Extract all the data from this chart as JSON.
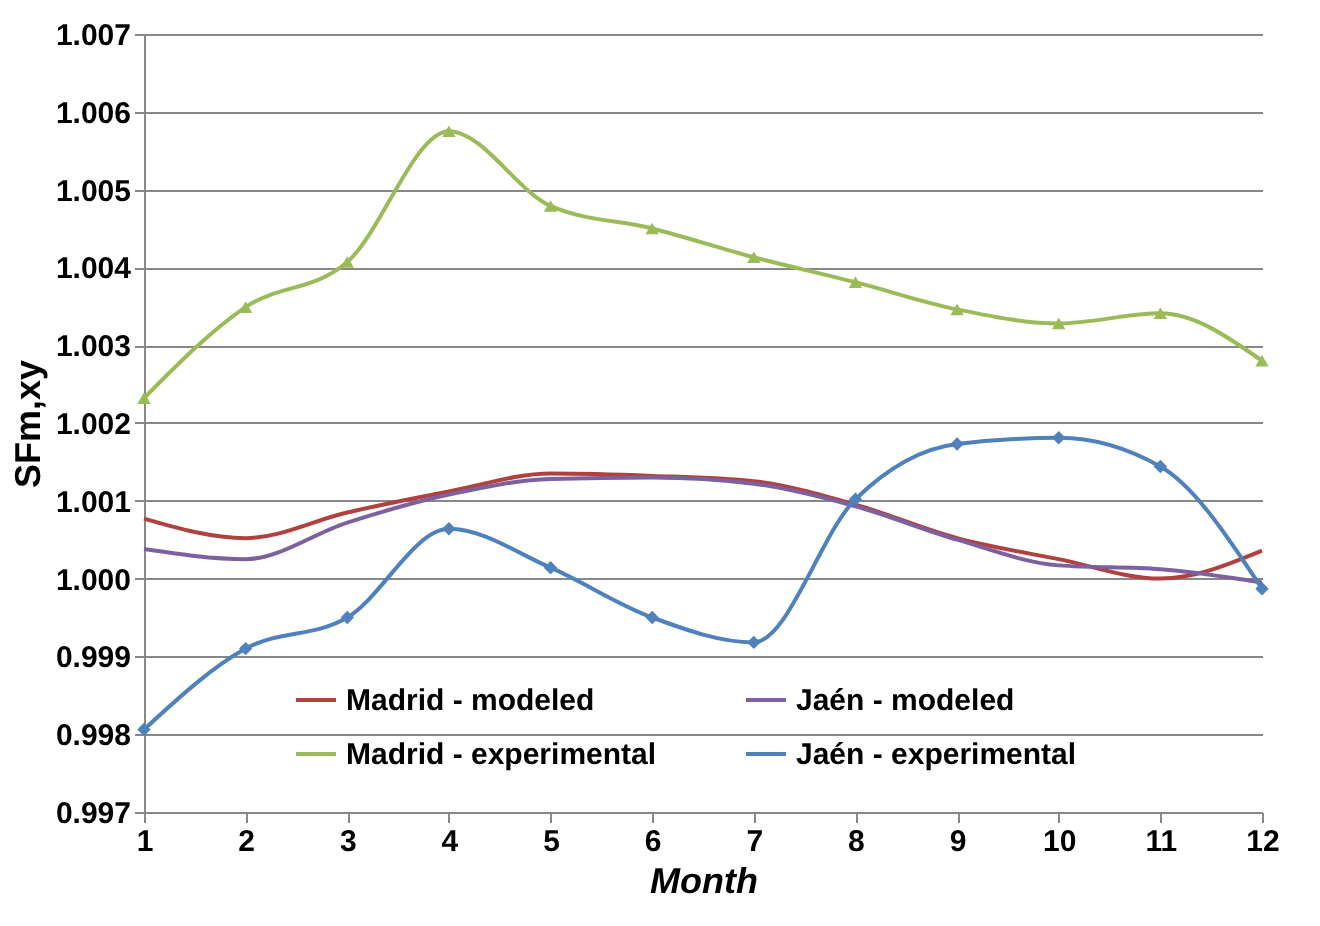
{
  "chart_data": {
    "type": "line",
    "xlabel": "Month",
    "ylabel": "SFm,xy",
    "x": [
      1,
      2,
      3,
      4,
      5,
      6,
      7,
      8,
      9,
      10,
      11,
      12
    ],
    "xlim": [
      1,
      12
    ],
    "xticks": [
      1,
      2,
      3,
      4,
      5,
      6,
      7,
      8,
      9,
      10,
      11,
      12
    ],
    "ylim": [
      0.997,
      1.007
    ],
    "yticks": [
      {
        "value": 0.997,
        "label": "0.997"
      },
      {
        "value": 0.998,
        "label": "0.998"
      },
      {
        "value": 0.999,
        "label": "0.999"
      },
      {
        "value": 1.0,
        "label": "1.000"
      },
      {
        "value": 1.001,
        "label": "1.001"
      },
      {
        "value": 1.002,
        "label": "1.002"
      },
      {
        "value": 1.003,
        "label": "1.003"
      },
      {
        "value": 1.004,
        "label": "1.004"
      },
      {
        "value": 1.005,
        "label": "1.005"
      },
      {
        "value": 1.006,
        "label": "1.006"
      },
      {
        "value": 1.007,
        "label": "1.007"
      }
    ],
    "grid": "y",
    "legend": "bottom",
    "series": [
      {
        "name": "Madrid - modeled",
        "color": "#b0413e",
        "marker": "none",
        "values": [
          1.00077,
          1.00052,
          1.00085,
          1.00112,
          1.00135,
          1.00132,
          1.00125,
          1.00095,
          1.00052,
          1.00025,
          1.0,
          1.00036
        ]
      },
      {
        "name": "Jaén - modeled",
        "color": "#7d60a0",
        "marker": "none",
        "values": [
          1.00038,
          1.00025,
          1.00072,
          1.00108,
          1.00128,
          1.0013,
          1.00122,
          1.00093,
          1.0005,
          1.00017,
          1.00012,
          0.99995
        ]
      },
      {
        "name": "Madrid - experimental",
        "color": "#9bbb59",
        "marker": "triangle",
        "values": [
          1.00232,
          1.00349,
          1.00407,
          1.00575,
          1.00479,
          1.0045,
          1.00413,
          1.00381,
          1.00346,
          1.00328,
          1.00341,
          1.0028
        ]
      },
      {
        "name": "Jaén - experimental",
        "color": "#4f81bd",
        "marker": "diamond",
        "values": [
          0.99806,
          0.9991,
          0.9995,
          1.00064,
          1.00014,
          0.9995,
          0.99918,
          1.00102,
          1.00173,
          1.00181,
          1.00144,
          0.99987
        ]
      }
    ]
  }
}
